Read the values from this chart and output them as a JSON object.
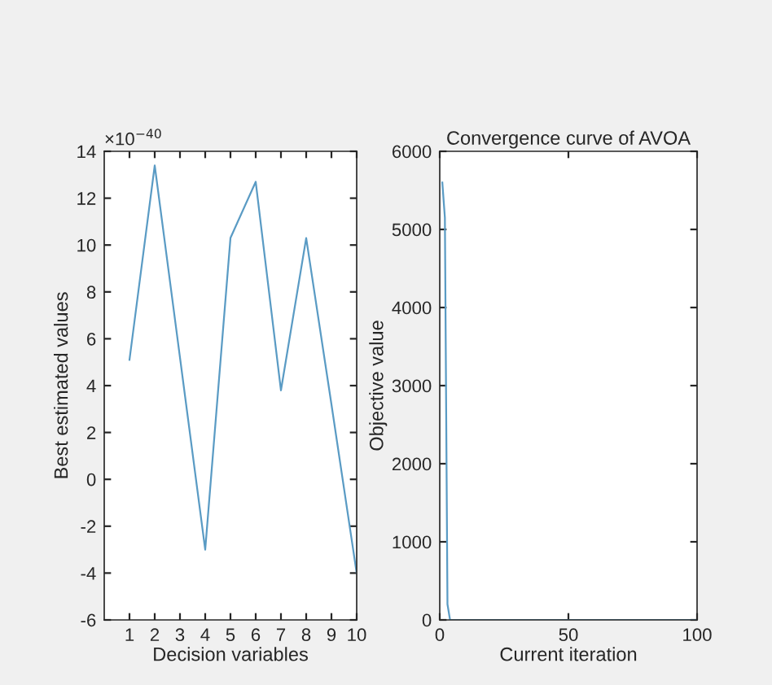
{
  "chart_data": [
    {
      "type": "line",
      "xlabel": "Decision variables",
      "ylabel": "Best estimated values",
      "annotations": [
        "×10$^{−40}$"
      ],
      "x": [
        1,
        2,
        3,
        4,
        5,
        6,
        7,
        8,
        9,
        10
      ],
      "series": [
        {
          "color": "#5a9bc4",
          "values": [
            5.1,
            13.4,
            5.2,
            -3,
            10.3,
            12.7,
            3.8,
            10.3,
            3.2,
            -4
          ]
        }
      ],
      "xlim": [
        0,
        10
      ],
      "xticks": [
        1,
        2,
        3,
        4,
        5,
        6,
        7,
        8,
        9,
        10
      ],
      "ylim": [
        -6,
        14
      ],
      "yticks": [
        -6,
        -4,
        -2,
        0,
        2,
        4,
        6,
        8,
        10,
        12,
        14
      ],
      "grid": false,
      "legend": false
    },
    {
      "type": "line",
      "title": "Convergence curve of AVOA",
      "xlabel": "Current iteration",
      "ylabel": "Objective value",
      "x": [
        1,
        2,
        3,
        4,
        5,
        100
      ],
      "series": [
        {
          "color": "#5a9bc4",
          "values": [
            5600,
            5150,
            200,
            0,
            0,
            0
          ]
        }
      ],
      "xlim": [
        0,
        100
      ],
      "xticks": [
        0,
        50,
        100
      ],
      "ylim": [
        0,
        6000
      ],
      "yticks": [
        0,
        1000,
        2000,
        3000,
        4000,
        5000,
        6000
      ],
      "grid": false,
      "legend": false
    }
  ]
}
